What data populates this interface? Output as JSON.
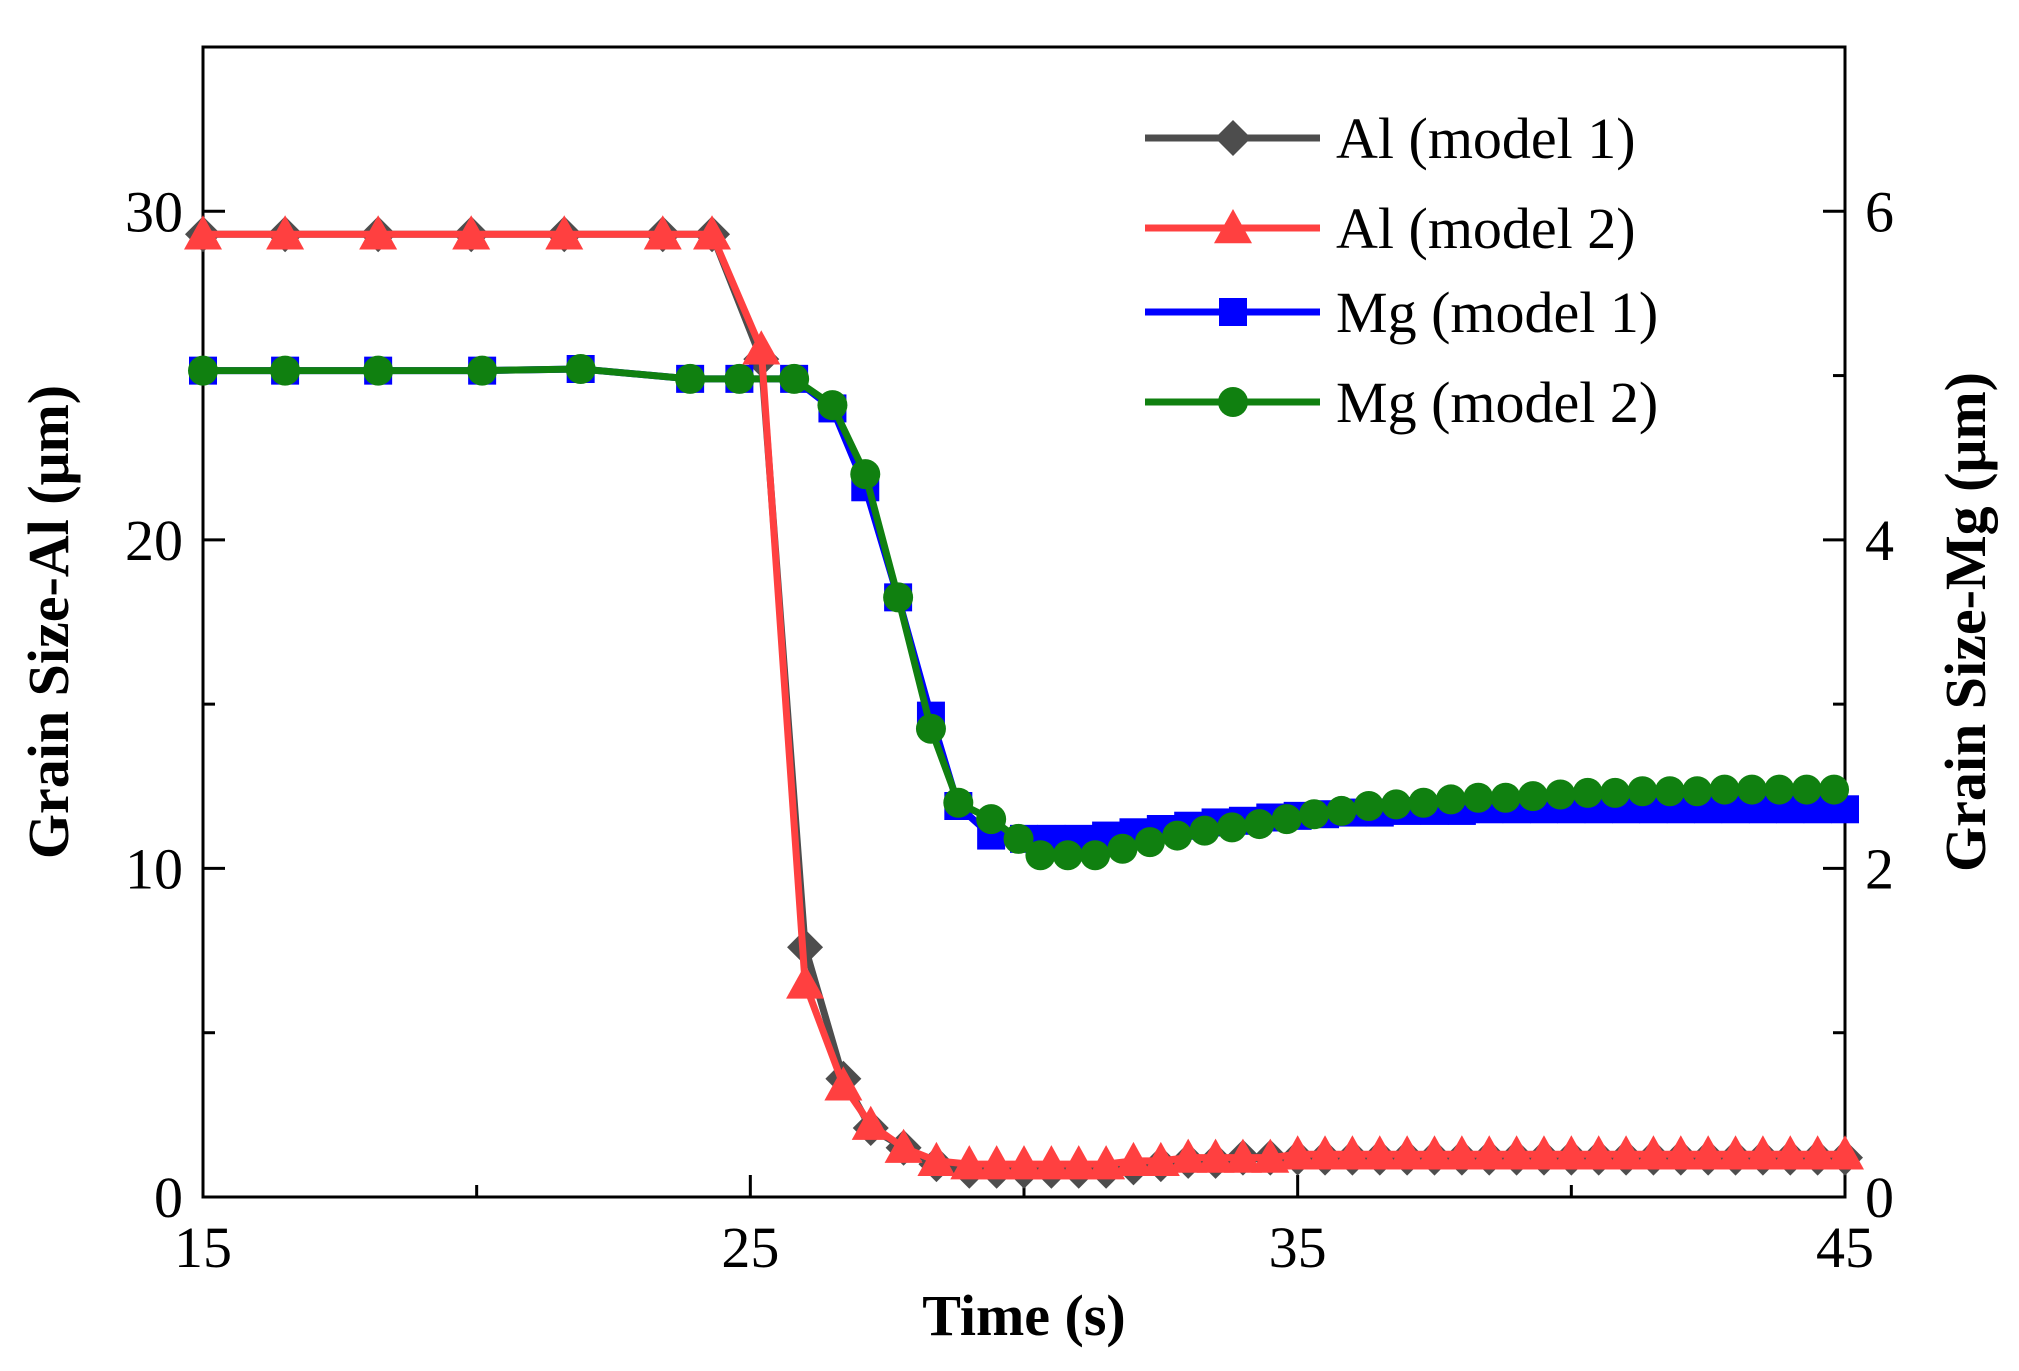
{
  "chart_data": {
    "type": "line",
    "xlabel": "Time (s)",
    "ylabel_left": "Grain Size-Al (μm)",
    "ylabel_right": "Grain Size-Mg (μm)",
    "xlim": [
      15,
      45
    ],
    "ylim_left": [
      0,
      35
    ],
    "ylim_right": [
      0,
      7
    ],
    "x_ticks": [
      15,
      25,
      35,
      45
    ],
    "x_minor_ticks": [
      20,
      30,
      40
    ],
    "y_left_ticks": [
      0,
      10,
      20,
      30
    ],
    "y_left_minor_ticks": [
      5,
      15,
      25
    ],
    "y_right_ticks": [
      0,
      2,
      4,
      6
    ],
    "y_right_minor_ticks": [
      1,
      3,
      5
    ],
    "grid": false,
    "legend_position": "top-right",
    "series": [
      {
        "name": "Al (model 1)",
        "axis": "left",
        "color": "#4d4d4d",
        "marker": "diamond",
        "x": [
          15.0,
          16.5,
          18.2,
          19.9,
          21.6,
          23.4,
          24.3,
          25.2,
          26.0,
          26.7,
          27.2,
          27.8,
          28.4,
          29.0,
          29.5,
          30.0,
          30.5,
          31.0,
          31.5,
          32.0,
          32.5,
          33.0,
          33.5,
          34.0,
          34.5,
          35.0,
          35.5,
          36.0,
          36.5,
          37.0,
          37.5,
          38.0,
          38.5,
          39.0,
          39.5,
          40.0,
          40.5,
          41.0,
          41.5,
          42.0,
          42.5,
          43.0,
          43.5,
          44.0,
          44.5,
          45.0
        ],
        "y": [
          29.3,
          29.3,
          29.3,
          29.3,
          29.3,
          29.3,
          29.3,
          25.5,
          7.6,
          3.6,
          2.1,
          1.5,
          1.0,
          0.8,
          0.8,
          0.8,
          0.8,
          0.8,
          0.8,
          0.9,
          1.0,
          1.1,
          1.1,
          1.2,
          1.2,
          1.2,
          1.2,
          1.2,
          1.2,
          1.2,
          1.2,
          1.2,
          1.2,
          1.2,
          1.2,
          1.2,
          1.2,
          1.2,
          1.2,
          1.2,
          1.2,
          1.2,
          1.2,
          1.2,
          1.2,
          1.2
        ]
      },
      {
        "name": "Al (model 2)",
        "axis": "left",
        "color": "#ff4040",
        "marker": "triangle",
        "x": [
          15.0,
          16.5,
          18.2,
          19.9,
          21.6,
          23.4,
          24.3,
          25.2,
          26.0,
          26.7,
          27.2,
          27.8,
          28.4,
          29.0,
          29.5,
          30.0,
          30.5,
          31.0,
          31.5,
          32.0,
          32.5,
          33.0,
          33.5,
          34.0,
          34.5,
          35.0,
          35.5,
          36.0,
          36.5,
          37.0,
          37.5,
          38.0,
          38.5,
          39.0,
          39.5,
          40.0,
          40.5,
          41.0,
          41.5,
          42.0,
          42.5,
          43.0,
          43.5,
          44.0,
          44.5,
          45.0
        ],
        "y": [
          29.3,
          29.3,
          29.3,
          29.3,
          29.3,
          29.3,
          29.3,
          25.8,
          6.5,
          3.4,
          2.2,
          1.5,
          1.1,
          1.0,
          1.0,
          1.0,
          1.0,
          1.0,
          1.0,
          1.1,
          1.1,
          1.2,
          1.2,
          1.2,
          1.2,
          1.3,
          1.3,
          1.3,
          1.3,
          1.3,
          1.3,
          1.3,
          1.3,
          1.3,
          1.3,
          1.3,
          1.3,
          1.3,
          1.3,
          1.3,
          1.3,
          1.3,
          1.3,
          1.3,
          1.3,
          1.3
        ]
      },
      {
        "name": "Mg (model 1)",
        "axis": "right",
        "color": "#0000ff",
        "marker": "square",
        "x": [
          15.0,
          16.5,
          18.2,
          20.1,
          21.9,
          23.9,
          24.8,
          25.8,
          26.5,
          27.1,
          27.7,
          28.3,
          28.8,
          29.4,
          30.0,
          30.5,
          31.0,
          31.5,
          32.0,
          32.5,
          33.0,
          33.5,
          34.0,
          34.5,
          35.0,
          35.5,
          36.0,
          36.5,
          37.0,
          37.5,
          38.0,
          38.5,
          39.0,
          39.5,
          40.0,
          40.5,
          41.0,
          41.5,
          42.0,
          42.5,
          43.0,
          43.5,
          44.0,
          44.5,
          45.0
        ],
        "y": [
          5.03,
          5.03,
          5.03,
          5.03,
          5.04,
          4.98,
          4.98,
          4.98,
          4.8,
          4.32,
          3.65,
          2.93,
          2.38,
          2.2,
          2.18,
          2.18,
          2.18,
          2.2,
          2.22,
          2.24,
          2.26,
          2.28,
          2.29,
          2.31,
          2.32,
          2.33,
          2.34,
          2.34,
          2.35,
          2.35,
          2.35,
          2.36,
          2.36,
          2.36,
          2.36,
          2.36,
          2.36,
          2.36,
          2.36,
          2.36,
          2.36,
          2.36,
          2.36,
          2.36,
          2.36
        ]
      },
      {
        "name": "Mg (model 2)",
        "axis": "right",
        "color": "#108010",
        "marker": "circle",
        "x": [
          15.0,
          16.5,
          18.2,
          20.1,
          21.9,
          23.9,
          24.8,
          25.8,
          26.5,
          27.1,
          27.7,
          28.3,
          28.8,
          29.4,
          29.9,
          30.3,
          30.8,
          31.3,
          31.8,
          32.3,
          32.8,
          33.3,
          33.8,
          34.3,
          34.8,
          35.3,
          35.8,
          36.3,
          36.8,
          37.3,
          37.8,
          38.3,
          38.8,
          39.3,
          39.8,
          40.3,
          40.8,
          41.3,
          41.8,
          42.3,
          42.8,
          43.3,
          43.8,
          44.3,
          44.8
        ],
        "y": [
          5.03,
          5.03,
          5.03,
          5.03,
          5.04,
          4.98,
          4.98,
          4.98,
          4.82,
          4.4,
          3.65,
          2.85,
          2.4,
          2.3,
          2.18,
          2.08,
          2.08,
          2.08,
          2.12,
          2.16,
          2.2,
          2.23,
          2.25,
          2.27,
          2.3,
          2.33,
          2.35,
          2.38,
          2.39,
          2.4,
          2.42,
          2.43,
          2.43,
          2.44,
          2.45,
          2.46,
          2.46,
          2.47,
          2.47,
          2.47,
          2.48,
          2.48,
          2.48,
          2.48,
          2.48
        ]
      }
    ]
  }
}
